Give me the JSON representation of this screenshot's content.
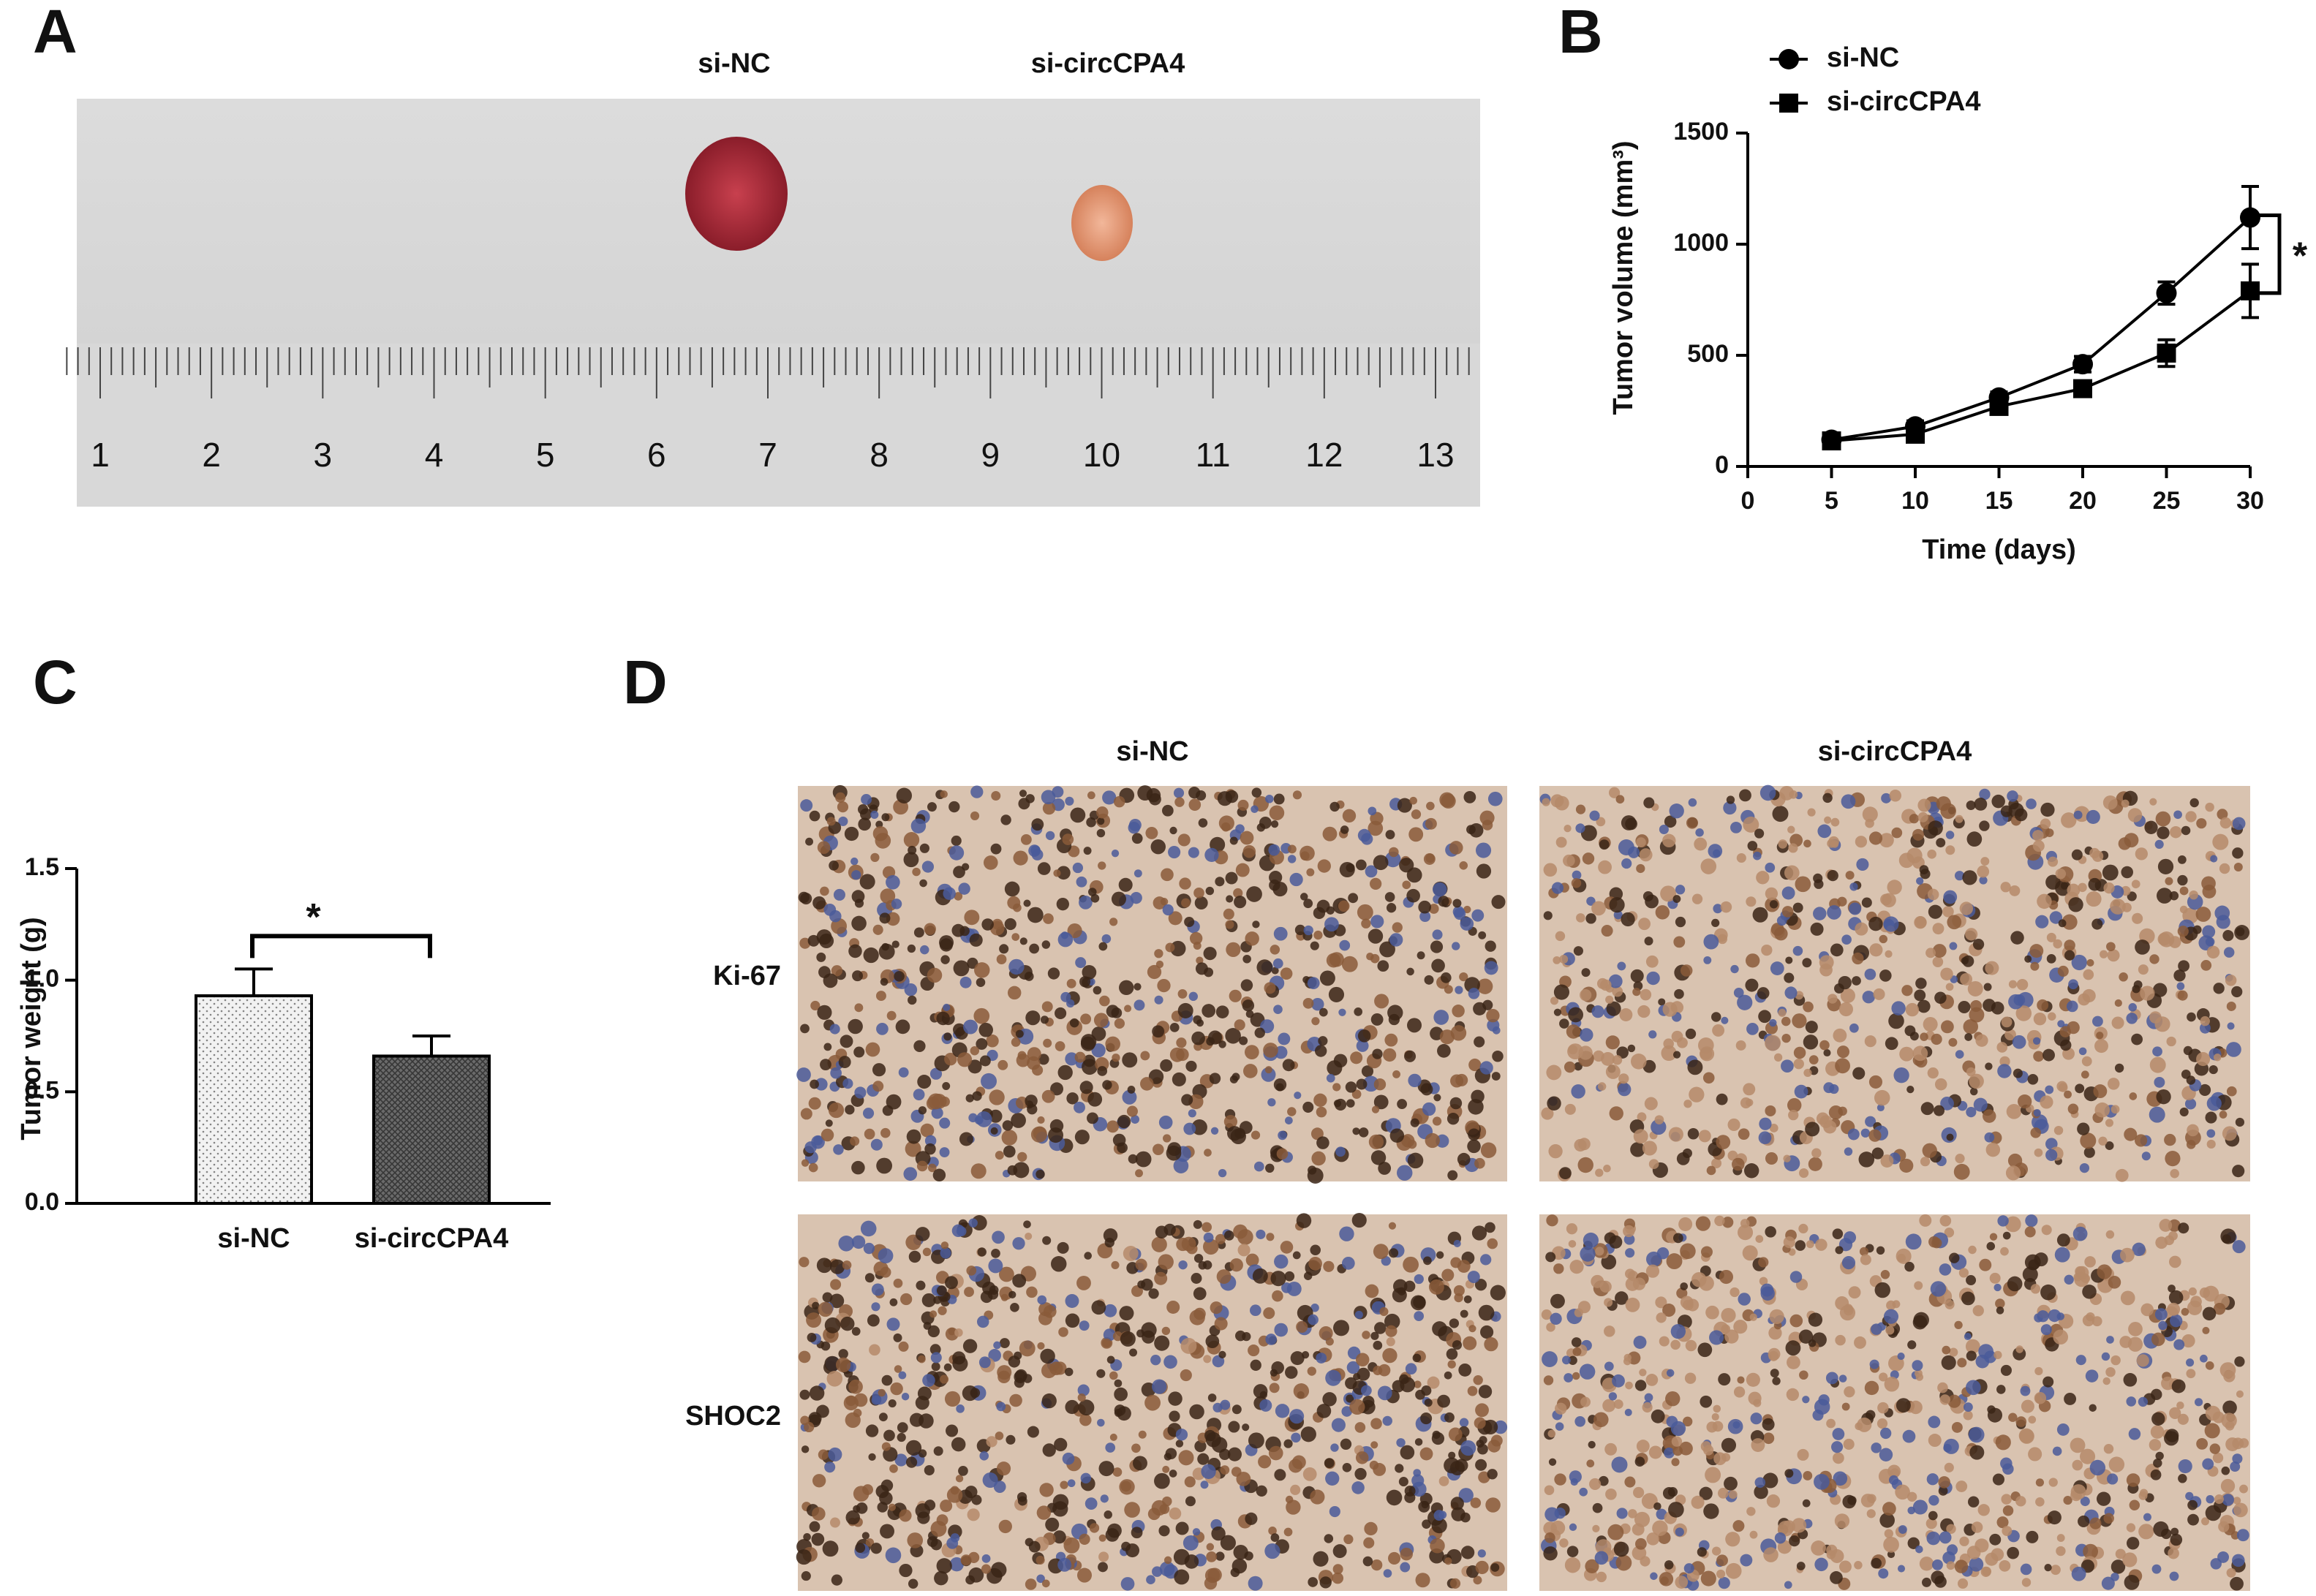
{
  "panel_labels": [
    "A",
    "B",
    "C",
    "D"
  ],
  "photo": {
    "groups": [
      "si-NC",
      "si-circCPA4"
    ],
    "ruler_numbers": [
      1,
      2,
      3,
      4,
      5,
      6,
      7,
      8,
      9,
      10,
      11,
      12,
      13
    ]
  },
  "ihc": {
    "columns": [
      "si-NC",
      "si-circCPA4"
    ],
    "rows": [
      "Ki-67",
      "SHOC2"
    ]
  },
  "chart_data": [
    {
      "type": "line",
      "x_label": "Time (days)",
      "y_label": "Tumor volume (mm³)",
      "annotation": "*",
      "x": [
        5,
        10,
        15,
        20,
        25,
        30
      ],
      "series": [
        {
          "name": "si-NC",
          "color": "#000000",
          "marker": "circle",
          "values": [
            120,
            180,
            310,
            460,
            780,
            1120
          ],
          "errors": [
            20,
            25,
            25,
            35,
            50,
            140
          ]
        },
        {
          "name": "si-circCPA4",
          "color": "#000000",
          "marker": "square",
          "values": [
            115,
            145,
            270,
            350,
            510,
            790
          ],
          "errors": [
            15,
            20,
            20,
            20,
            60,
            120
          ]
        }
      ],
      "xlim": [
        0,
        30
      ],
      "xticks": [
        0,
        5,
        10,
        15,
        20,
        25,
        30
      ],
      "ylim": [
        0,
        1500
      ],
      "yticks": [
        0,
        500,
        1000,
        1500
      ],
      "legend": "top-left"
    },
    {
      "type": "bar",
      "y_label": "Tumor weight (g)",
      "annotation": "*",
      "categories": [
        "si-NC",
        "si-circCPA4"
      ],
      "values": [
        0.93,
        0.66
      ],
      "errors": [
        0.12,
        0.09
      ],
      "colors": [
        "#f2f2f2",
        "#6a6a6a"
      ],
      "ylim": [
        0,
        1.5
      ],
      "yticks": [
        {
          "value": 0,
          "label": "0.0"
        },
        {
          "value": 0.5,
          "label": "0.5"
        },
        {
          "value": 1,
          "label": "1.0"
        },
        {
          "value": 1.5,
          "label": "1.5"
        }
      ]
    }
  ]
}
